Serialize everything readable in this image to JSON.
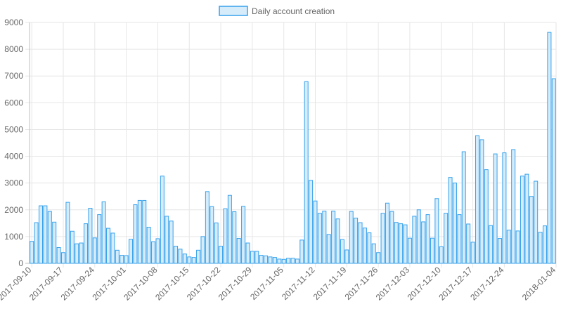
{
  "chart_data": {
    "type": "bar",
    "series": [
      {
        "name": "Daily account creation",
        "color": "#36a2eb",
        "fill": "#d7ecfb",
        "start_date": "2017-09-10",
        "values": [
          820,
          1520,
          2150,
          2150,
          1940,
          1540,
          590,
          400,
          2280,
          1200,
          730,
          760,
          1480,
          2060,
          950,
          1820,
          2300,
          1310,
          1130,
          490,
          300,
          290,
          900,
          2190,
          2350,
          2350,
          1350,
          810,
          920,
          3260,
          1760,
          1580,
          640,
          530,
          350,
          240,
          220,
          490,
          1000,
          2680,
          2120,
          1510,
          640,
          2040,
          2540,
          1930,
          930,
          2130,
          760,
          450,
          450,
          300,
          280,
          240,
          220,
          160,
          150,
          190,
          190,
          160,
          870,
          6790,
          3100,
          2330,
          1870,
          1950,
          1080,
          1950,
          1660,
          890,
          500,
          1940,
          1690,
          1520,
          1320,
          1140,
          730,
          400,
          1870,
          2250,
          1940,
          1530,
          1480,
          1440,
          940,
          1760,
          2000,
          1550,
          1820,
          940,
          2420,
          620,
          1870,
          3210,
          3000,
          1820,
          4170,
          1470,
          790,
          4770,
          4620,
          3500,
          1410,
          4090,
          930,
          4130,
          1240,
          4250,
          1210,
          3260,
          3330,
          2500,
          3070,
          1160,
          1400,
          8630,
          6900
        ]
      }
    ],
    "x_tick_labels": [
      "2017-09-10",
      "2017-09-17",
      "2017-09-24",
      "2017-10-01",
      "2017-10-08",
      "2017-10-15",
      "2017-10-22",
      "2017-10-29",
      "2017-11-05",
      "2017-11-12",
      "2017-11-19",
      "2017-11-26",
      "2017-12-03",
      "2017-12-10",
      "2017-12-17",
      "2017-12-24",
      "2018-01-04"
    ],
    "y_ticks": [
      "0",
      "1000",
      "2000",
      "3000",
      "4000",
      "5000",
      "6000",
      "7000",
      "8000",
      "9000"
    ],
    "ylim": [
      0,
      9000
    ],
    "legend_position": "top",
    "grid": true
  }
}
